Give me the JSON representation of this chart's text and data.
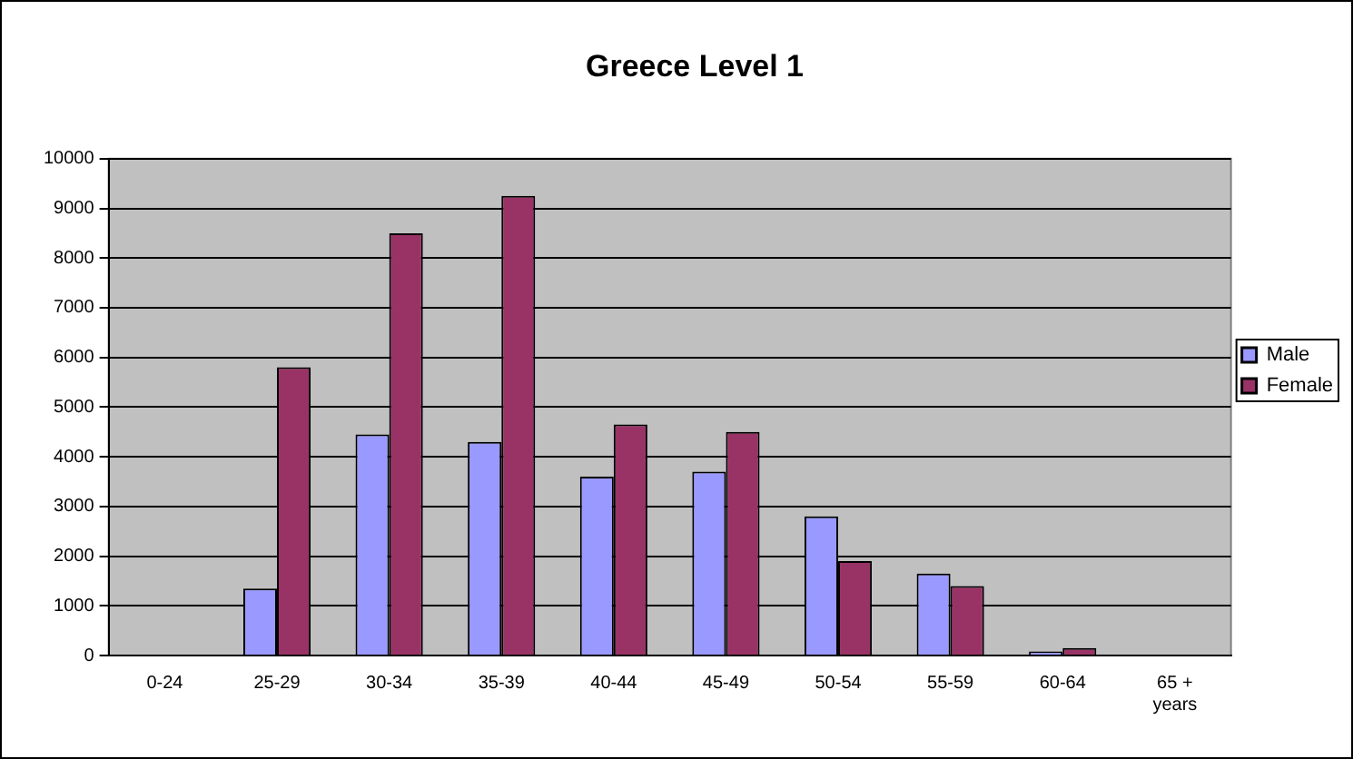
{
  "chart_data": {
    "type": "bar",
    "title": "Greece Level 1",
    "categories": [
      "0-24",
      "25-29",
      "30-34",
      "35-39",
      "40-44",
      "45-49",
      "50-54",
      "55-59",
      "60-64",
      "65 + years"
    ],
    "series": [
      {
        "name": "Male",
        "color": "#9999ff",
        "values": [
          0,
          1350,
          4450,
          4300,
          3600,
          3700,
          2800,
          1650,
          80,
          0
        ]
      },
      {
        "name": "Female",
        "color": "#993366",
        "values": [
          0,
          5800,
          8500,
          9250,
          4650,
          4500,
          1900,
          1400,
          150,
          0
        ]
      }
    ],
    "ylim": [
      0,
      10000
    ],
    "yticks": [
      0,
      1000,
      2000,
      3000,
      4000,
      5000,
      6000,
      7000,
      8000,
      9000,
      10000
    ],
    "grid": "y",
    "legend": "right"
  }
}
